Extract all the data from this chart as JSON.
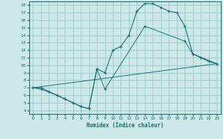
{
  "xlabel": "Humidex (Indice chaleur)",
  "bg_color": "#cce8e8",
  "line_color": "#1a6b6b",
  "grid_color": "#88c4c4",
  "xlim": [
    -0.5,
    23.5
  ],
  "ylim": [
    3.5,
    18.5
  ],
  "xticks": [
    0,
    1,
    2,
    3,
    4,
    5,
    6,
    7,
    8,
    9,
    10,
    11,
    12,
    13,
    14,
    15,
    16,
    17,
    18,
    19,
    20,
    21,
    22,
    23
  ],
  "yticks": [
    4,
    5,
    6,
    7,
    8,
    9,
    10,
    11,
    12,
    13,
    14,
    15,
    16,
    17,
    18
  ],
  "line1_x": [
    0,
    1,
    2,
    3,
    4,
    5,
    6,
    7,
    8,
    9,
    10,
    11,
    12,
    13,
    14,
    15,
    16,
    17,
    18,
    19,
    20,
    21,
    22,
    23
  ],
  "line1_y": [
    7,
    7,
    6.5,
    6,
    5.5,
    5,
    4.5,
    4.2,
    9.5,
    9,
    12,
    12.5,
    14,
    17.2,
    18.2,
    18.2,
    17.7,
    17.2,
    17,
    15.2,
    11.5,
    11.0,
    10.5,
    10.2
  ],
  "line2_x": [
    0,
    1,
    3,
    4,
    5,
    6,
    7,
    8,
    9,
    14,
    19,
    20,
    23
  ],
  "line2_y": [
    7,
    6.8,
    6,
    5.5,
    5,
    4.5,
    4.2,
    9.5,
    6.8,
    15.2,
    13.2,
    11.5,
    10.2
  ],
  "line3_x": [
    0,
    23
  ],
  "line3_y": [
    7,
    10.2
  ]
}
